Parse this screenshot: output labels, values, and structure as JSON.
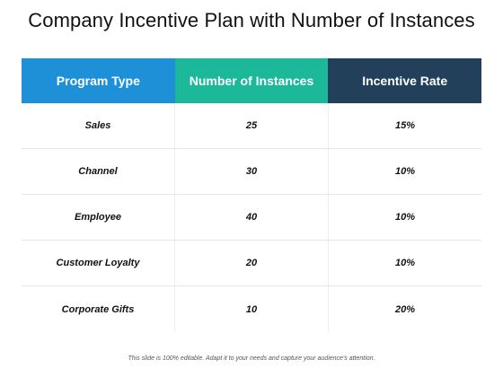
{
  "title": "Company Incentive Plan with Number of Instances",
  "table": {
    "headers": [
      {
        "label": "Program Type",
        "color": "#1e90d8"
      },
      {
        "label": "Number of Instances",
        "color": "#1bb99a"
      },
      {
        "label": "Incentive Rate",
        "color": "#23405a"
      }
    ],
    "rows": [
      {
        "program": "Sales",
        "instances": "25",
        "rate": "15%"
      },
      {
        "program": "Channel",
        "instances": "30",
        "rate": "10%"
      },
      {
        "program": "Employee",
        "instances": "40",
        "rate": "10%"
      },
      {
        "program": "Customer Loyalty",
        "instances": "20",
        "rate": "10%"
      },
      {
        "program": "Corporate Gifts",
        "instances": "10",
        "rate": "20%"
      }
    ]
  },
  "footer": "This slide is 100% editable. Adapt it to your needs and capture your audience's attention."
}
